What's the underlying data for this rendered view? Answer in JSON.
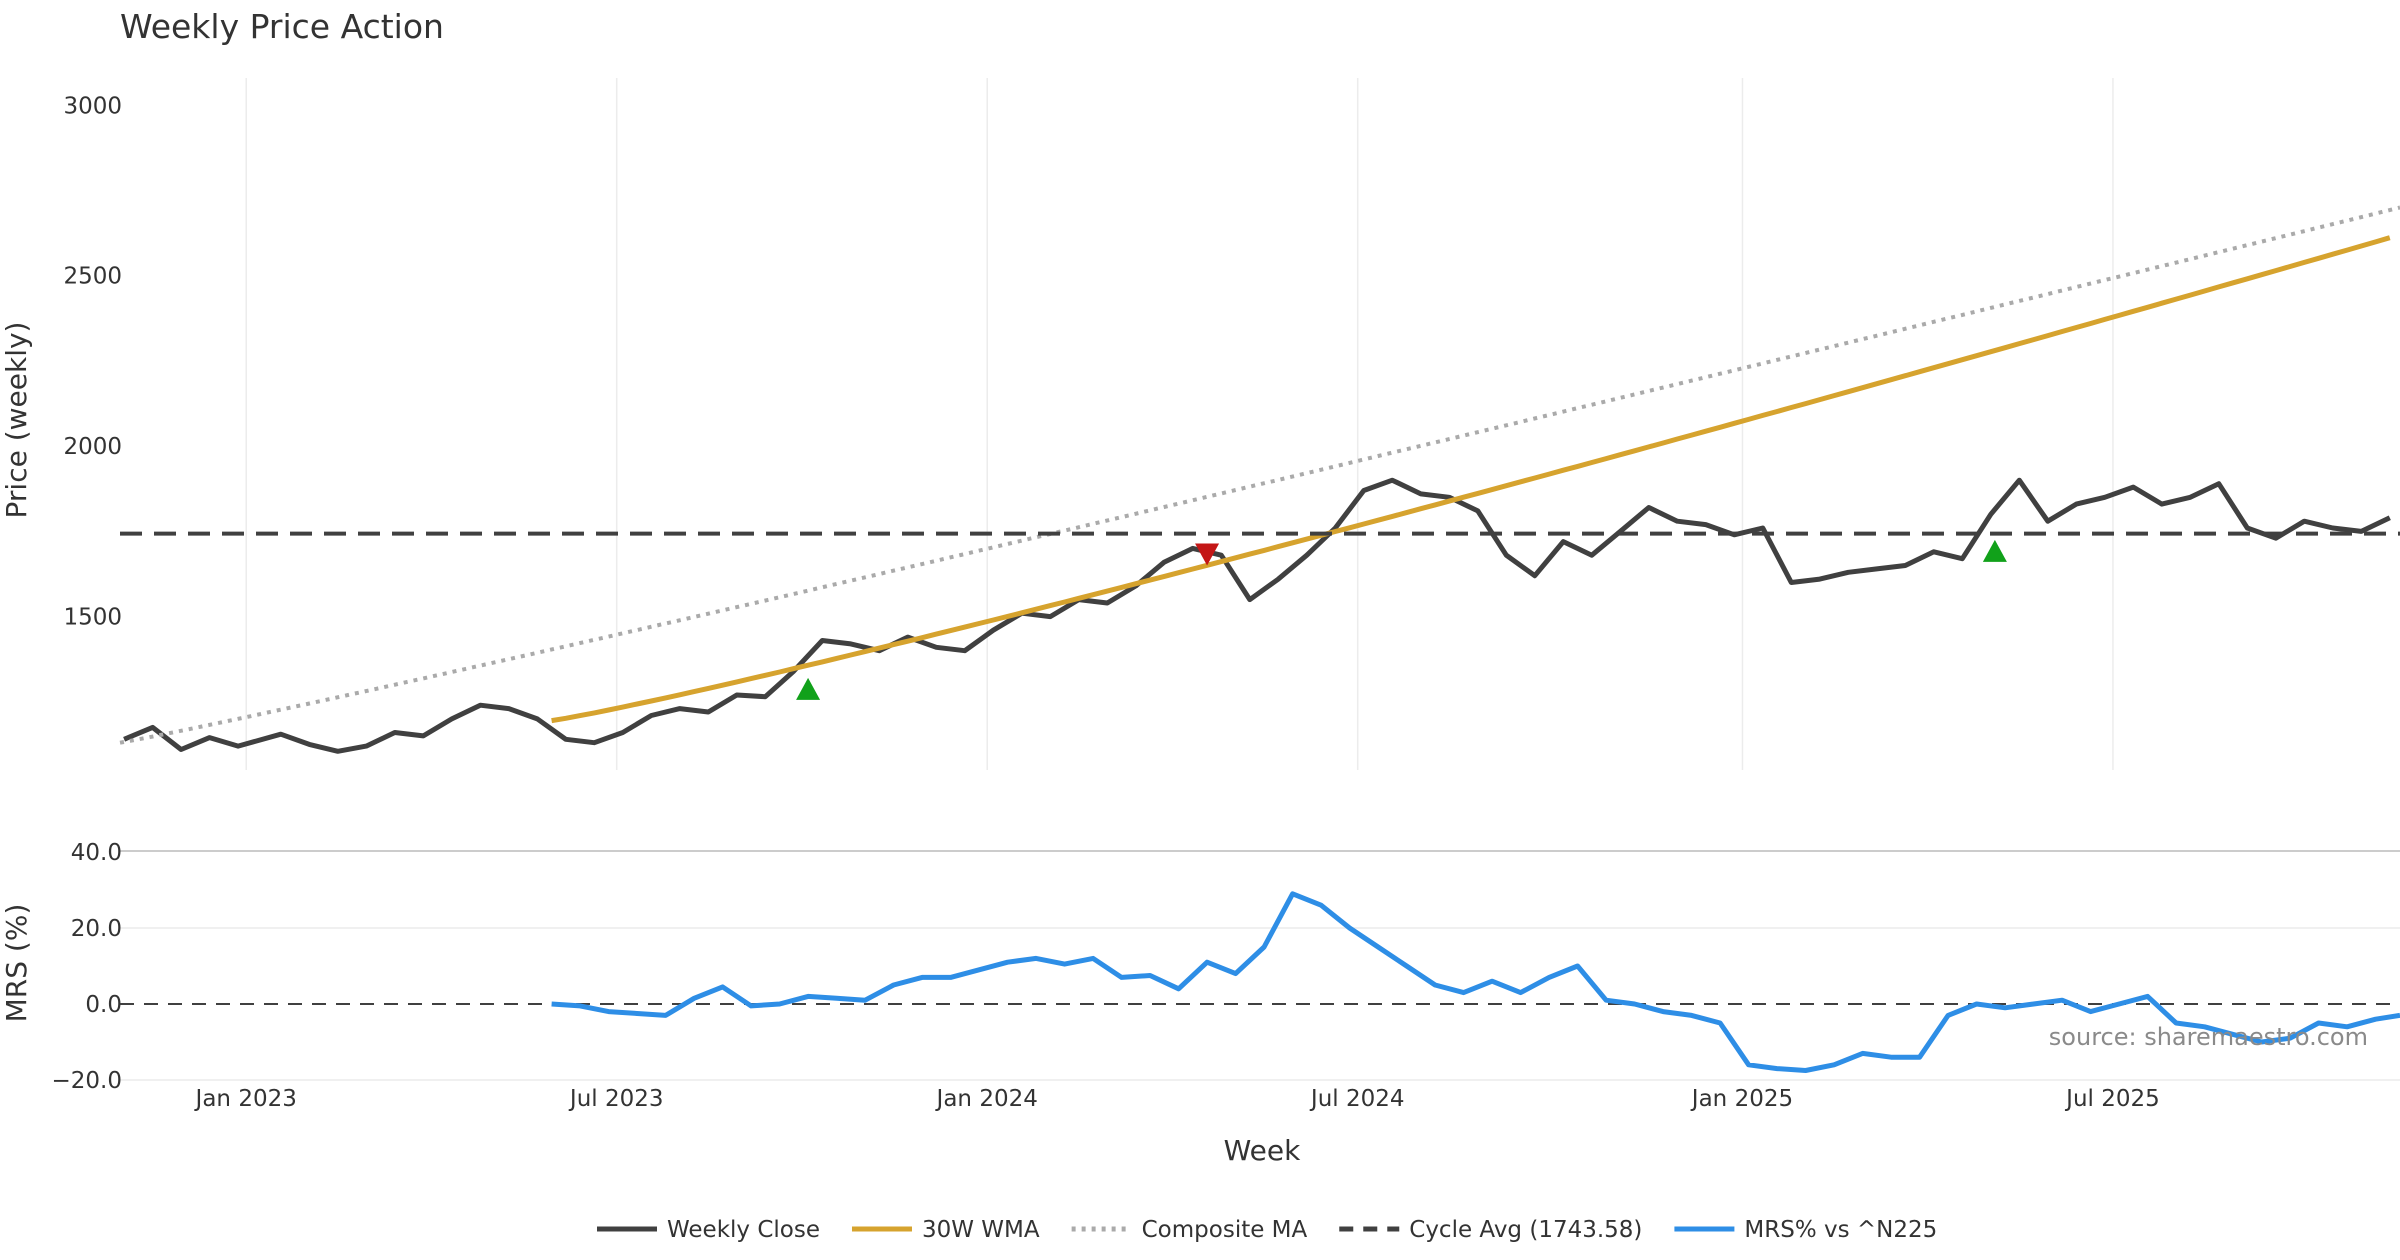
{
  "chart_data": [
    {
      "type": "line",
      "title": "Weekly Price Action",
      "ylabel": "Price (weekly)",
      "ylim": [
        1050,
        3080
      ],
      "y_ticks": [
        1500,
        2000,
        2500,
        3000
      ],
      "x_ticks": [
        {
          "date": "2023-01-02",
          "label": "Jan 2023"
        },
        {
          "date": "2023-07-03",
          "label": "Jul 2023"
        },
        {
          "date": "2024-01-01",
          "label": "Jan 2024"
        },
        {
          "date": "2024-07-01",
          "label": "Jul 2024"
        },
        {
          "date": "2025-01-06",
          "label": "Jan 2025"
        },
        {
          "date": "2025-07-07",
          "label": "Jul 2025"
        }
      ],
      "xlim": [
        "2022-11-01",
        "2025-11-25"
      ],
      "grid": true,
      "series": [
        {
          "name": "Weekly Close",
          "color": "#404040",
          "style": "solid",
          "points": [
            [
              "2022-11-03",
              1140
            ],
            [
              "2022-11-17",
              1175
            ],
            [
              "2022-12-01",
              1110
            ],
            [
              "2022-12-15",
              1145
            ],
            [
              "2022-12-29",
              1120
            ],
            [
              "2023-01-19",
              1155
            ],
            [
              "2023-02-02",
              1125
            ],
            [
              "2023-02-16",
              1105
            ],
            [
              "2023-03-02",
              1120
            ],
            [
              "2023-03-16",
              1160
            ],
            [
              "2023-03-30",
              1150
            ],
            [
              "2023-04-13",
              1200
            ],
            [
              "2023-04-27",
              1240
            ],
            [
              "2023-05-11",
              1230
            ],
            [
              "2023-05-25",
              1200
            ],
            [
              "2023-06-08",
              1140
            ],
            [
              "2023-06-22",
              1130
            ],
            [
              "2023-07-06",
              1160
            ],
            [
              "2023-07-20",
              1210
            ],
            [
              "2023-08-03",
              1230
            ],
            [
              "2023-08-17",
              1220
            ],
            [
              "2023-08-31",
              1270
            ],
            [
              "2023-09-14",
              1265
            ],
            [
              "2023-09-28",
              1340
            ],
            [
              "2023-10-12",
              1430
            ],
            [
              "2023-10-26",
              1420
            ],
            [
              "2023-11-09",
              1400
            ],
            [
              "2023-11-23",
              1440
            ],
            [
              "2023-12-07",
              1410
            ],
            [
              "2023-12-21",
              1400
            ],
            [
              "2024-01-04",
              1460
            ],
            [
              "2024-01-18",
              1510
            ],
            [
              "2024-02-01",
              1500
            ],
            [
              "2024-02-15",
              1550
            ],
            [
              "2024-02-29",
              1540
            ],
            [
              "2024-03-14",
              1590
            ],
            [
              "2024-03-28",
              1660
            ],
            [
              "2024-04-11",
              1700
            ],
            [
              "2024-04-25",
              1680
            ],
            [
              "2024-05-09",
              1550
            ],
            [
              "2024-05-23",
              1610
            ],
            [
              "2024-06-06",
              1680
            ],
            [
              "2024-06-20",
              1760
            ],
            [
              "2024-07-04",
              1870
            ],
            [
              "2024-07-18",
              1900
            ],
            [
              "2024-08-01",
              1860
            ],
            [
              "2024-08-15",
              1850
            ],
            [
              "2024-08-29",
              1810
            ],
            [
              "2024-09-12",
              1680
            ],
            [
              "2024-09-26",
              1620
            ],
            [
              "2024-10-10",
              1720
            ],
            [
              "2024-10-24",
              1680
            ],
            [
              "2024-11-07",
              1750
            ],
            [
              "2024-11-21",
              1820
            ],
            [
              "2024-12-05",
              1780
            ],
            [
              "2024-12-19",
              1770
            ],
            [
              "2025-01-02",
              1740
            ],
            [
              "2025-01-16",
              1760
            ],
            [
              "2025-01-30",
              1600
            ],
            [
              "2025-02-13",
              1610
            ],
            [
              "2025-02-27",
              1630
            ],
            [
              "2025-03-13",
              1640
            ],
            [
              "2025-03-27",
              1650
            ],
            [
              "2025-04-10",
              1690
            ],
            [
              "2025-04-24",
              1670
            ],
            [
              "2025-05-08",
              1800
            ],
            [
              "2025-05-22",
              1900
            ],
            [
              "2025-06-05",
              1780
            ],
            [
              "2025-06-19",
              1830
            ],
            [
              "2025-07-03",
              1850
            ],
            [
              "2025-07-17",
              1880
            ],
            [
              "2025-07-31",
              1830
            ],
            [
              "2025-08-14",
              1850
            ],
            [
              "2025-08-28",
              1890
            ],
            [
              "2025-09-11",
              1760
            ],
            [
              "2025-09-25",
              1730
            ],
            [
              "2025-10-09",
              1780
            ],
            [
              "2025-10-23",
              1760
            ],
            [
              "2025-11-06",
              1750
            ],
            [
              "2025-11-20",
              1790
            ]
          ]
        }
      ],
      "cycle_avg": 1743.58
    },
    {
      "type": "line",
      "ylabel": "MRS (%)",
      "ylim": [
        -20,
        40
      ],
      "y_ticks": [
        -20,
        0,
        20,
        40
      ],
      "y_tick_labels": [
        "−20.0",
        "0.0",
        "20.0",
        "40.0"
      ],
      "xlabel": "Week",
      "grid": true,
      "series": [
        {
          "name": "MRS% vs ^N225",
          "color": "#2e8ee6",
          "style": "solid",
          "points": [
            [
              "2023-06-01",
              0
            ],
            [
              "2023-06-15",
              -0.5
            ],
            [
              "2023-06-29",
              -2
            ],
            [
              "2023-07-13",
              -2.5
            ],
            [
              "2023-07-27",
              -3
            ],
            [
              "2023-08-10",
              1.5
            ],
            [
              "2023-08-24",
              4.5
            ],
            [
              "2023-09-07",
              -0.5
            ],
            [
              "2023-09-21",
              0
            ],
            [
              "2023-10-05",
              2
            ],
            [
              "2023-10-19",
              1.5
            ],
            [
              "2023-11-02",
              1
            ],
            [
              "2023-11-16",
              5
            ],
            [
              "2023-11-30",
              7
            ],
            [
              "2023-12-14",
              7
            ],
            [
              "2023-12-28",
              9
            ],
            [
              "2024-01-11",
              11
            ],
            [
              "2024-01-25",
              12
            ],
            [
              "2024-02-08",
              10.5
            ],
            [
              "2024-02-22",
              12
            ],
            [
              "2024-03-07",
              7
            ],
            [
              "2024-03-21",
              7.5
            ],
            [
              "2024-04-04",
              4
            ],
            [
              "2024-04-18",
              11
            ],
            [
              "2024-05-02",
              8
            ],
            [
              "2024-05-16",
              15
            ],
            [
              "2024-05-30",
              29
            ],
            [
              "2024-06-13",
              26
            ],
            [
              "2024-06-27",
              20
            ],
            [
              "2024-07-11",
              15
            ],
            [
              "2024-07-25",
              10
            ],
            [
              "2024-08-08",
              5
            ],
            [
              "2024-08-22",
              3
            ],
            [
              "2024-09-05",
              6
            ],
            [
              "2024-09-19",
              3
            ],
            [
              "2024-10-03",
              7
            ],
            [
              "2024-10-17",
              10
            ],
            [
              "2024-10-31",
              1
            ],
            [
              "2024-11-14",
              0
            ],
            [
              "2024-11-28",
              -2
            ],
            [
              "2024-12-12",
              -3
            ],
            [
              "2024-12-26",
              -5
            ],
            [
              "2025-01-09",
              -16
            ],
            [
              "2025-01-23",
              -17
            ],
            [
              "2025-02-06",
              -17.5
            ],
            [
              "2025-02-20",
              -16
            ],
            [
              "2025-03-06",
              -13
            ],
            [
              "2025-03-20",
              -14
            ],
            [
              "2025-04-03",
              -14
            ],
            [
              "2025-04-17",
              -3
            ],
            [
              "2025-05-01",
              0
            ],
            [
              "2025-05-15",
              -1
            ],
            [
              "2025-05-29",
              0
            ],
            [
              "2025-06-12",
              1
            ],
            [
              "2025-06-26",
              -2
            ],
            [
              "2025-07-10",
              0
            ],
            [
              "2025-07-24",
              2
            ],
            [
              "2025-08-07",
              -5
            ],
            [
              "2025-08-21",
              -6
            ],
            [
              "2025-09-04",
              -8
            ],
            [
              "2025-09-18",
              -10
            ],
            [
              "2025-10-02",
              -9
            ],
            [
              "2025-10-16",
              -5
            ],
            [
              "2025-10-30",
              -6
            ],
            [
              "2025-11-13",
              -4
            ],
            [
              "2025-11-25",
              -3
            ]
          ]
        }
      ]
    }
  ],
  "legend": [
    {
      "label": "Weekly Close",
      "color": "#404040",
      "style": "solid"
    },
    {
      "label": "30W WMA",
      "color": "#d6a32e",
      "style": "solid"
    },
    {
      "label": "Composite MA",
      "color": "#aaaaaa",
      "style": "dotted"
    },
    {
      "label": "Cycle Avg (1743.58)",
      "color": "#404040",
      "style": "dashed"
    },
    {
      "label": "MRS% vs ^N225",
      "color": "#2e8ee6",
      "style": "solid"
    }
  ],
  "source": "source: sharemaestro.com"
}
